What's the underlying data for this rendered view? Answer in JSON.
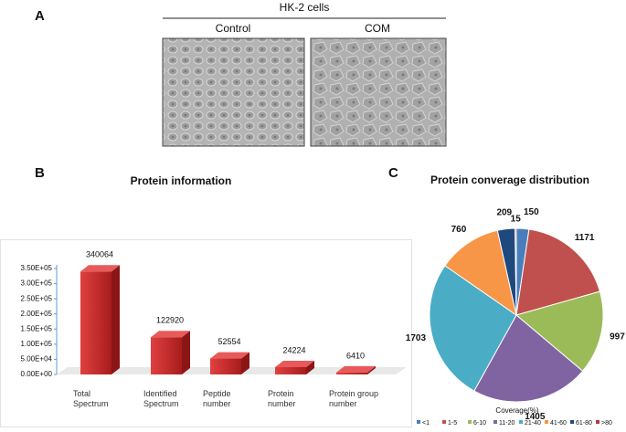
{
  "figure": {
    "panel_a": "A",
    "panel_b": "B",
    "panel_c": "C",
    "cell_line": "HK-2 cells",
    "conditions": [
      "Control",
      "COM"
    ]
  },
  "chart_data": [
    {
      "type": "bar",
      "title": "Protein information",
      "categories": [
        "Total Spectrum",
        "Identified Spectrum",
        "Peptide number",
        "Protein number",
        "Protein group number"
      ],
      "values": [
        340064,
        122920,
        52554,
        24224,
        6410
      ],
      "color": "#c0282a",
      "ylim": [
        0,
        350000
      ],
      "yticks": [
        {
          "value": 0,
          "label": "0.00E+00"
        },
        {
          "value": 50000,
          "label": "5.00E+04"
        },
        {
          "value": 100000,
          "label": "1.00E+05"
        },
        {
          "value": 150000,
          "label": "1.50E+05"
        },
        {
          "value": 200000,
          "label": "2.00E+05"
        },
        {
          "value": 250000,
          "label": "2.50E+05"
        },
        {
          "value": 300000,
          "label": "3.00E+05"
        },
        {
          "value": 350000,
          "label": "3.50E+05"
        }
      ]
    },
    {
      "type": "pie",
      "title": "Protein converage distribution",
      "legend_title": "Coverage(%)",
      "categories": [
        "<1",
        "1-5",
        "6-10",
        "11-20",
        "21-40",
        "41-60",
        "61-80",
        ">80"
      ],
      "values": [
        150,
        1171,
        997,
        1405,
        1703,
        760,
        209,
        15
      ],
      "colors": [
        "#4a7ebb",
        "#c0504d",
        "#9bbb59",
        "#8064a2",
        "#4bacc6",
        "#f79646",
        "#1f497d",
        "#b03a3a"
      ]
    }
  ]
}
